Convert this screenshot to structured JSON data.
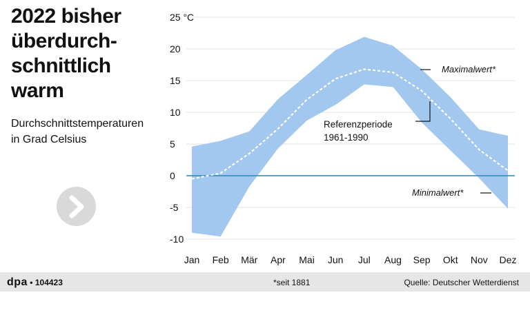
{
  "header": {
    "title_lines": [
      "2022 bisher",
      "überdurch-",
      "schnittlich",
      "warm"
    ],
    "subtitle_lines": [
      "Durchschnittstemperaturen",
      "in Grad Celsius"
    ]
  },
  "footer": {
    "brand": "dpa",
    "bullet": "•",
    "code": "104423",
    "note": "*seit 1881",
    "source": "Quelle: Deutscher Wetterdienst"
  },
  "colors": {
    "band": "#a3c8ef",
    "zero_line": "#1a8bc2",
    "reference": "#ffffff",
    "grid": "#e2e2e2",
    "button": "#d9d9d9"
  },
  "icons": {
    "next": "chevron-right-icon"
  },
  "chart_data": {
    "type": "area",
    "categories": [
      "Jan",
      "Feb",
      "Mär",
      "Apr",
      "Mai",
      "Jun",
      "Jul",
      "Aug",
      "Sep",
      "Okt",
      "Nov",
      "Dez"
    ],
    "series": [
      {
        "name": "Maximalwert*",
        "values": [
          4.6,
          5.5,
          7.0,
          12.1,
          15.9,
          19.8,
          21.9,
          20.5,
          16.8,
          12.4,
          7.3,
          6.3
        ]
      },
      {
        "name": "Minimalwert*",
        "values": [
          -9.0,
          -9.6,
          -1.7,
          4.3,
          8.7,
          11.2,
          14.4,
          14.0,
          8.4,
          4.0,
          -0.4,
          -5.2
        ]
      },
      {
        "name": "Referenzperiode 1961-1990",
        "values": [
          -0.5,
          0.4,
          3.5,
          7.4,
          12.0,
          15.3,
          16.8,
          16.3,
          13.4,
          9.0,
          4.1,
          0.8
        ]
      }
    ],
    "yticks": [
      "25 °C",
      "20",
      "15",
      "10",
      "5",
      "0",
      "-5",
      "-10"
    ],
    "ytick_values": [
      25,
      20,
      15,
      10,
      5,
      0,
      -5,
      -10
    ],
    "ylim": [
      -10,
      25
    ],
    "annotations": {
      "max": "Maximalwert*",
      "min": "Minimalwert*",
      "reference_line1": "Referenzperiode",
      "reference_line2": "1961-1990"
    },
    "grid": true
  }
}
